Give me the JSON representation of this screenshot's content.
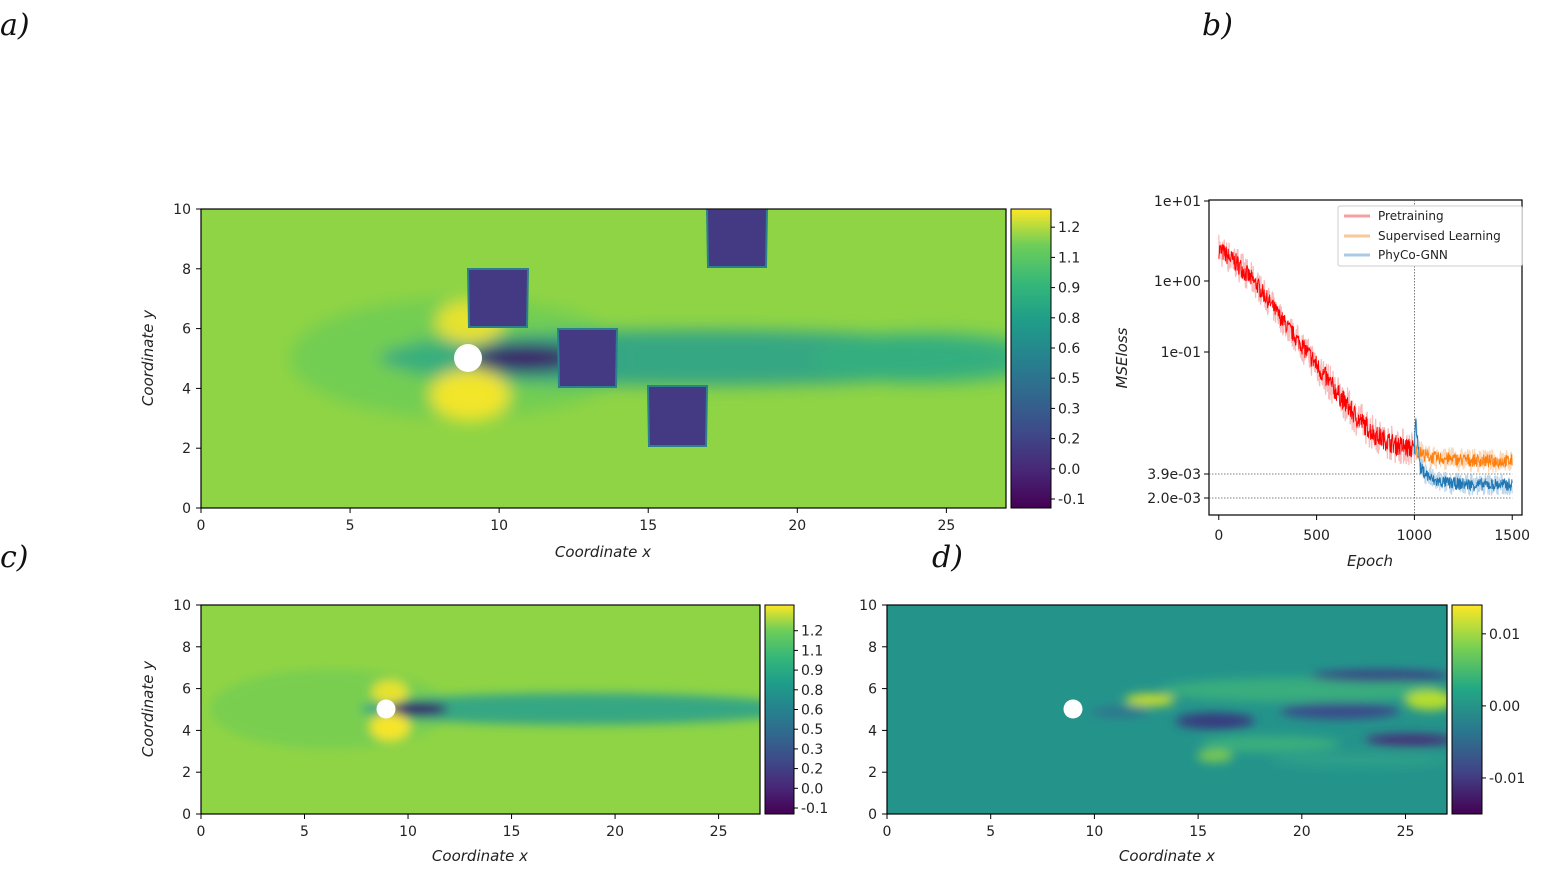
{
  "panel_labels": {
    "a": "a)",
    "b": "b)",
    "c": "c)",
    "d": "d)"
  },
  "chart_data": [
    {
      "id": "a",
      "type": "heatmap",
      "xlabel": "Coordinate x",
      "ylabel": "Coordinate y",
      "xlim": [
        0,
        27
      ],
      "ylim": [
        0,
        10
      ],
      "xticks": [
        0,
        5,
        10,
        15,
        20,
        25
      ],
      "yticks": [
        0,
        2,
        4,
        6,
        8,
        10
      ],
      "colormap": "viridis",
      "colorbar_ticks": [
        "-0.1",
        "0.0",
        "0.2",
        "0.3",
        "0.5",
        "0.6",
        "0.8",
        "0.9",
        "1.1",
        "1.2"
      ],
      "colorbar_range": [
        -0.15,
        1.27
      ],
      "cylinder": {
        "x": 9,
        "y": 5,
        "r": 0.45
      },
      "obstacles": [
        {
          "x0": 9.0,
          "x1": 11.0,
          "y0": 6.0,
          "y1": 8.0
        },
        {
          "x0": 12.0,
          "x1": 14.0,
          "y0": 4.0,
          "y1": 6.0
        },
        {
          "x0": 15.0,
          "x1": 17.0,
          "y0": 2.0,
          "y1": 4.0
        },
        {
          "x0": 17.0,
          "x1": 19.0,
          "y0": 8.0,
          "y1": 10.0
        }
      ]
    },
    {
      "id": "b",
      "type": "line",
      "xlabel": "Epoch",
      "ylabel": "MSEloss",
      "xlim": [
        -50,
        1550
      ],
      "xticks": [
        0,
        500,
        1000,
        1500
      ],
      "yscale": "log",
      "ytick_labels": [
        "1e+01",
        "1e+00",
        "1e-01",
        "3.9e-03",
        "2.0e-03"
      ],
      "ytick_values": [
        10,
        1,
        0.1,
        0.0039,
        0.002
      ],
      "reference_lines": {
        "vertical_epoch": 1000,
        "horizontal_values": [
          0.0039,
          0.002
        ]
      },
      "legend": {
        "placement": "top-right",
        "entries": [
          "Pretraining",
          "Supervised Learning",
          "PhyCo-GNN"
        ]
      },
      "series": [
        {
          "name": "Pretraining",
          "color": "#ff0000",
          "x": [
            0,
            100,
            200,
            300,
            400,
            500,
            600,
            700,
            800,
            900,
            1000
          ],
          "values": [
            2.5,
            1.6,
            0.85,
            0.35,
            0.15,
            0.07,
            0.035,
            0.018,
            0.011,
            0.0085,
            0.0075
          ]
        },
        {
          "name": "Supervised Learning",
          "color": "#ff7f0e",
          "x": [
            1000,
            1050,
            1100,
            1200,
            1300,
            1400,
            1500
          ],
          "values": [
            0.0075,
            0.0065,
            0.006,
            0.0058,
            0.0056,
            0.0055,
            0.0055
          ]
        },
        {
          "name": "PhyCo-GNN",
          "color": "#1f77b4",
          "x": [
            1000,
            1005,
            1030,
            1100,
            1200,
            1300,
            1400,
            1500
          ],
          "values": [
            0.0075,
            0.018,
            0.0045,
            0.0032,
            0.003,
            0.0029,
            0.0029,
            0.0029
          ]
        }
      ]
    },
    {
      "id": "c",
      "type": "heatmap",
      "xlabel": "Coordinate x",
      "ylabel": "Coordinate y",
      "xlim": [
        0,
        27
      ],
      "ylim": [
        0,
        10
      ],
      "xticks": [
        0,
        5,
        10,
        15,
        20,
        25
      ],
      "yticks": [
        0,
        2,
        4,
        6,
        8,
        10
      ],
      "colormap": "viridis",
      "colorbar_ticks": [
        "-0.1",
        "0.0",
        "0.2",
        "0.3",
        "0.5",
        "0.6",
        "0.8",
        "0.9",
        "1.1",
        "1.2"
      ],
      "colorbar_range": [
        -0.15,
        1.27
      ],
      "cylinder": {
        "x": 9,
        "y": 5,
        "r": 0.45
      }
    },
    {
      "id": "d",
      "type": "heatmap",
      "xlabel": "Coordinate x",
      "ylabel": "",
      "xlim": [
        0,
        27
      ],
      "ylim": [
        0,
        10
      ],
      "xticks": [
        0,
        5,
        10,
        15,
        20,
        25
      ],
      "yticks": [
        0,
        2,
        4,
        6,
        8,
        10
      ],
      "colormap": "viridis",
      "colorbar_ticks": [
        "0.01",
        "0.00",
        "-0.01"
      ],
      "colorbar_tick_values": [
        0.01,
        0.0,
        -0.01
      ],
      "colorbar_range": [
        -0.015,
        0.014
      ],
      "cylinder": {
        "x": 9,
        "y": 5,
        "r": 0.45
      }
    }
  ]
}
